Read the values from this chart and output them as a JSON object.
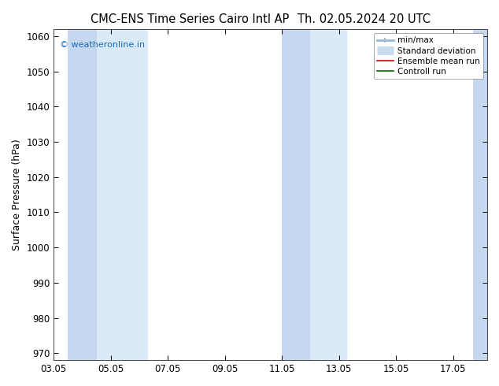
{
  "title_left": "CMC-ENS Time Series Cairo Intl AP",
  "title_right": "Th. 02.05.2024 20 UTC",
  "ylabel": "Surface Pressure (hPa)",
  "ylim": [
    968,
    1062
  ],
  "yticks": [
    970,
    980,
    990,
    1000,
    1010,
    1020,
    1030,
    1040,
    1050,
    1060
  ],
  "xtick_labels": [
    "03.05",
    "05.05",
    "07.05",
    "09.05",
    "11.05",
    "13.05",
    "15.05",
    "17.05"
  ],
  "xtick_positions": [
    3,
    5,
    7,
    9,
    11,
    13,
    15,
    17
  ],
  "xlim": [
    3.0,
    18.2
  ],
  "shaded_bands_dark": [
    {
      "x_start": 3.5,
      "x_end": 4.5
    },
    {
      "x_start": 11.0,
      "x_end": 12.0
    },
    {
      "x_start": 17.7,
      "x_end": 18.2
    }
  ],
  "shaded_bands_light": [
    {
      "x_start": 4.5,
      "x_end": 6.3
    },
    {
      "x_start": 12.0,
      "x_end": 13.3
    }
  ],
  "color_dark_band": "#c5d8ef",
  "color_light_band": "#daeaf8",
  "watermark": "© weatheronline.in",
  "watermark_color": "#1a6bb5",
  "legend_items": [
    {
      "label": "min/max",
      "color": "#9ab8d0",
      "lw": 2
    },
    {
      "label": "Standard deviation",
      "color": "#c8dced",
      "lw": 8
    },
    {
      "label": "Ensemble mean run",
      "color": "#cc0000",
      "lw": 1.2
    },
    {
      "label": "Controll run",
      "color": "#006600",
      "lw": 1.2
    }
  ],
  "background_color": "#ffffff",
  "plot_bg_color": "#ffffff",
  "title_fontsize": 10.5,
  "axis_label_fontsize": 9,
  "tick_fontsize": 8.5
}
